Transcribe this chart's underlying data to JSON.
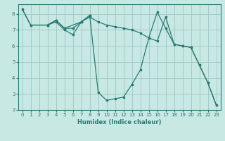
{
  "xlabel": "Humidex (Indice chaleur)",
  "xlim": [
    -0.5,
    23.5
  ],
  "ylim": [
    2,
    8.6
  ],
  "yticks": [
    2,
    3,
    4,
    5,
    6,
    7,
    8
  ],
  "xticks": [
    0,
    1,
    2,
    3,
    4,
    5,
    6,
    7,
    8,
    9,
    10,
    11,
    12,
    13,
    14,
    15,
    16,
    17,
    18,
    19,
    20,
    21,
    22,
    23
  ],
  "background_color": "#c8e8e4",
  "grid_color": "#a0ccca",
  "line_color": "#2a7a72",
  "lines": [
    {
      "x": [
        0,
        1,
        3,
        4,
        5,
        6,
        7,
        8,
        9,
        10,
        11,
        12,
        13,
        14,
        15,
        16,
        17,
        18,
        19,
        20,
        21,
        22,
        23
      ],
      "y": [
        8.3,
        7.3,
        7.3,
        7.5,
        7.0,
        6.7,
        7.5,
        7.9,
        3.1,
        2.6,
        2.7,
        2.8,
        3.6,
        4.5,
        6.5,
        8.1,
        7.1,
        6.1,
        6.0,
        5.9,
        4.8,
        3.7,
        2.3
      ]
    },
    {
      "x": [
        0,
        1,
        3,
        4,
        5,
        6,
        7,
        8,
        9,
        10,
        11,
        12,
        13,
        14,
        15,
        16,
        17,
        18,
        19,
        20,
        21,
        22,
        23
      ],
      "y": [
        8.3,
        7.3,
        7.3,
        7.6,
        7.1,
        7.1,
        7.5,
        7.8,
        7.5,
        7.3,
        7.2,
        7.1,
        7.0,
        6.8,
        6.5,
        6.3,
        7.8,
        6.1,
        6.0,
        5.9,
        4.8,
        3.7,
        2.3
      ]
    },
    {
      "x": [
        3,
        4,
        5,
        7,
        8
      ],
      "y": [
        7.3,
        7.6,
        7.1,
        7.5,
        7.9
      ]
    }
  ]
}
